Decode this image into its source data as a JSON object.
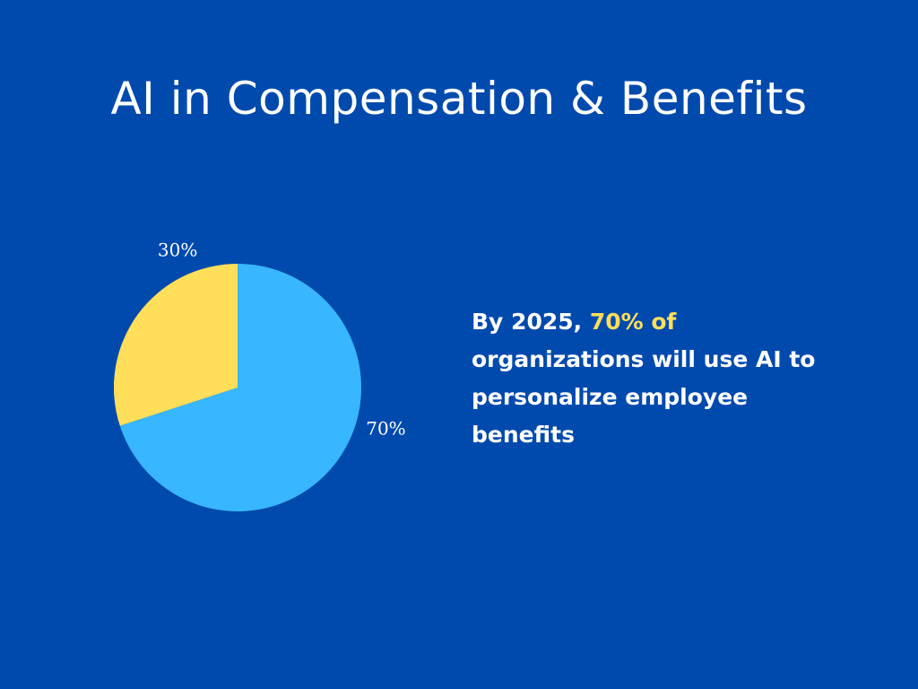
{
  "title": "AI in Compensation & Benefits",
  "stat": {
    "prefix": "By 2025, ",
    "highlight": "70% of",
    "suffix": " organizations will use AI to personalize employee benefits",
    "highlight_color": "#ffde59"
  },
  "colors": {
    "background": "#004aad",
    "text": "#ffffff"
  },
  "chart_data": {
    "type": "pie",
    "title": "",
    "slices": [
      {
        "value": 70,
        "label": "70%",
        "color": "#38b6ff"
      },
      {
        "value": 30,
        "label": "30%",
        "color": "#ffde59"
      }
    ],
    "start_angle_deg": 0,
    "direction": "clockwise",
    "legend": "none"
  }
}
